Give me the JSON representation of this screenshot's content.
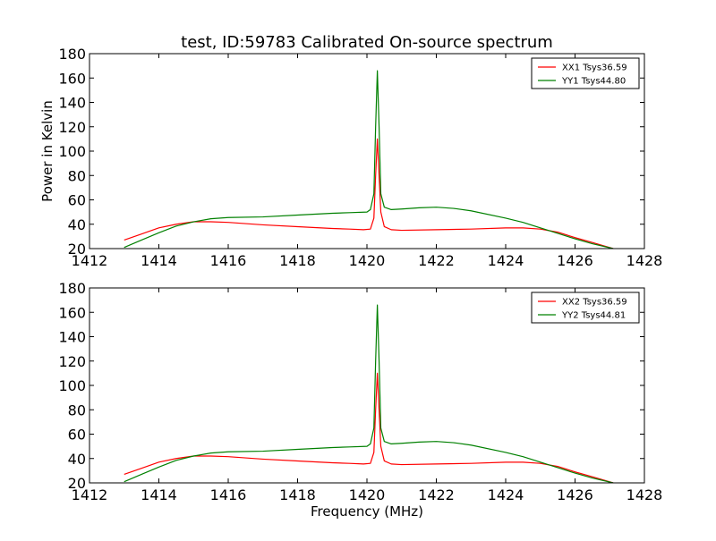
{
  "figure": {
    "title": "test, ID:59783 Calibrated On-source spectrum"
  },
  "chart_data": [
    {
      "type": "line",
      "title": "test, ID:59783 Calibrated On-source spectrum",
      "xlabel": "",
      "ylabel": "Power in Kelvin",
      "xlim": [
        1412,
        1428
      ],
      "ylim": [
        20,
        180
      ],
      "xticks": [
        1412,
        1414,
        1416,
        1418,
        1420,
        1422,
        1424,
        1426,
        1428
      ],
      "yticks": [
        20,
        40,
        60,
        80,
        100,
        120,
        140,
        160,
        180
      ],
      "legend_position": "top-right",
      "grid": false,
      "series": [
        {
          "name": "XX1 Tsys36.59",
          "color": "#ff0000",
          "x": [
            1413.0,
            1413.5,
            1414.0,
            1414.5,
            1415.0,
            1415.5,
            1416.0,
            1417.0,
            1418.0,
            1419.0,
            1419.5,
            1419.9,
            1420.1,
            1420.2,
            1420.25,
            1420.3,
            1420.35,
            1420.4,
            1420.5,
            1420.7,
            1421.0,
            1422.0,
            1423.0,
            1424.0,
            1424.5,
            1425.0,
            1425.5,
            1426.0,
            1426.5,
            1427.1
          ],
          "y": [
            27,
            32,
            37,
            40,
            42,
            42,
            41.5,
            39.5,
            38,
            36.5,
            36,
            35.5,
            36,
            45,
            80,
            110,
            80,
            50,
            38,
            35.5,
            35,
            35.5,
            36,
            37,
            37,
            36,
            33.5,
            29,
            25,
            20
          ]
        },
        {
          "name": "YY1 Tsys44.80",
          "color": "#008000",
          "x": [
            1413.0,
            1413.5,
            1414.0,
            1414.5,
            1415.0,
            1415.5,
            1416.0,
            1417.0,
            1418.0,
            1419.0,
            1419.5,
            1420.0,
            1420.1,
            1420.2,
            1420.25,
            1420.3,
            1420.35,
            1420.4,
            1420.5,
            1420.7,
            1421.0,
            1421.5,
            1422.0,
            1422.5,
            1423.0,
            1424.0,
            1424.5,
            1425.0,
            1425.5,
            1426.0,
            1426.5,
            1427.1
          ],
          "y": [
            21,
            27,
            33,
            38.5,
            42,
            44.5,
            45.5,
            46,
            47.5,
            49,
            49.5,
            50,
            52,
            65,
            120,
            166,
            120,
            65,
            54,
            52,
            52.5,
            53.5,
            54,
            53,
            51,
            45,
            41.5,
            37,
            32.5,
            28,
            24,
            20
          ]
        }
      ]
    },
    {
      "type": "line",
      "title": "",
      "xlabel": "Frequency (MHz)",
      "ylabel": "",
      "xlim": [
        1412,
        1428
      ],
      "ylim": [
        20,
        180
      ],
      "xticks": [
        1412,
        1414,
        1416,
        1418,
        1420,
        1422,
        1424,
        1426,
        1428
      ],
      "yticks": [
        20,
        40,
        60,
        80,
        100,
        120,
        140,
        160,
        180
      ],
      "legend_position": "top-right",
      "grid": false,
      "series": [
        {
          "name": "XX2 Tsys36.59",
          "color": "#ff0000",
          "x": [
            1413.0,
            1413.5,
            1414.0,
            1414.5,
            1415.0,
            1415.5,
            1416.0,
            1417.0,
            1418.0,
            1419.0,
            1419.5,
            1419.9,
            1420.1,
            1420.2,
            1420.25,
            1420.3,
            1420.35,
            1420.4,
            1420.5,
            1420.7,
            1421.0,
            1422.0,
            1423.0,
            1424.0,
            1424.5,
            1425.0,
            1425.5,
            1426.0,
            1426.5,
            1427.1
          ],
          "y": [
            27,
            32,
            37,
            40,
            42,
            42,
            41.5,
            39.5,
            38,
            36.5,
            36,
            35.5,
            36,
            45,
            80,
            110,
            80,
            50,
            38,
            35.5,
            35,
            35.5,
            36,
            37,
            37,
            36,
            33.5,
            29,
            25,
            20
          ]
        },
        {
          "name": "YY2 Tsys44.81",
          "color": "#008000",
          "x": [
            1413.0,
            1413.5,
            1414.0,
            1414.5,
            1415.0,
            1415.5,
            1416.0,
            1417.0,
            1418.0,
            1419.0,
            1419.5,
            1420.0,
            1420.1,
            1420.2,
            1420.25,
            1420.3,
            1420.35,
            1420.4,
            1420.5,
            1420.7,
            1421.0,
            1421.5,
            1422.0,
            1422.5,
            1423.0,
            1424.0,
            1424.5,
            1425.0,
            1425.5,
            1426.0,
            1426.5,
            1427.1
          ],
          "y": [
            21,
            27,
            33,
            38.5,
            42,
            44.5,
            45.5,
            46,
            47.5,
            49,
            49.5,
            50,
            52,
            65,
            120,
            166,
            120,
            65,
            54,
            52,
            52.5,
            53.5,
            54,
            53,
            51,
            45,
            41.5,
            37,
            32.5,
            28,
            24,
            20
          ]
        }
      ]
    }
  ]
}
